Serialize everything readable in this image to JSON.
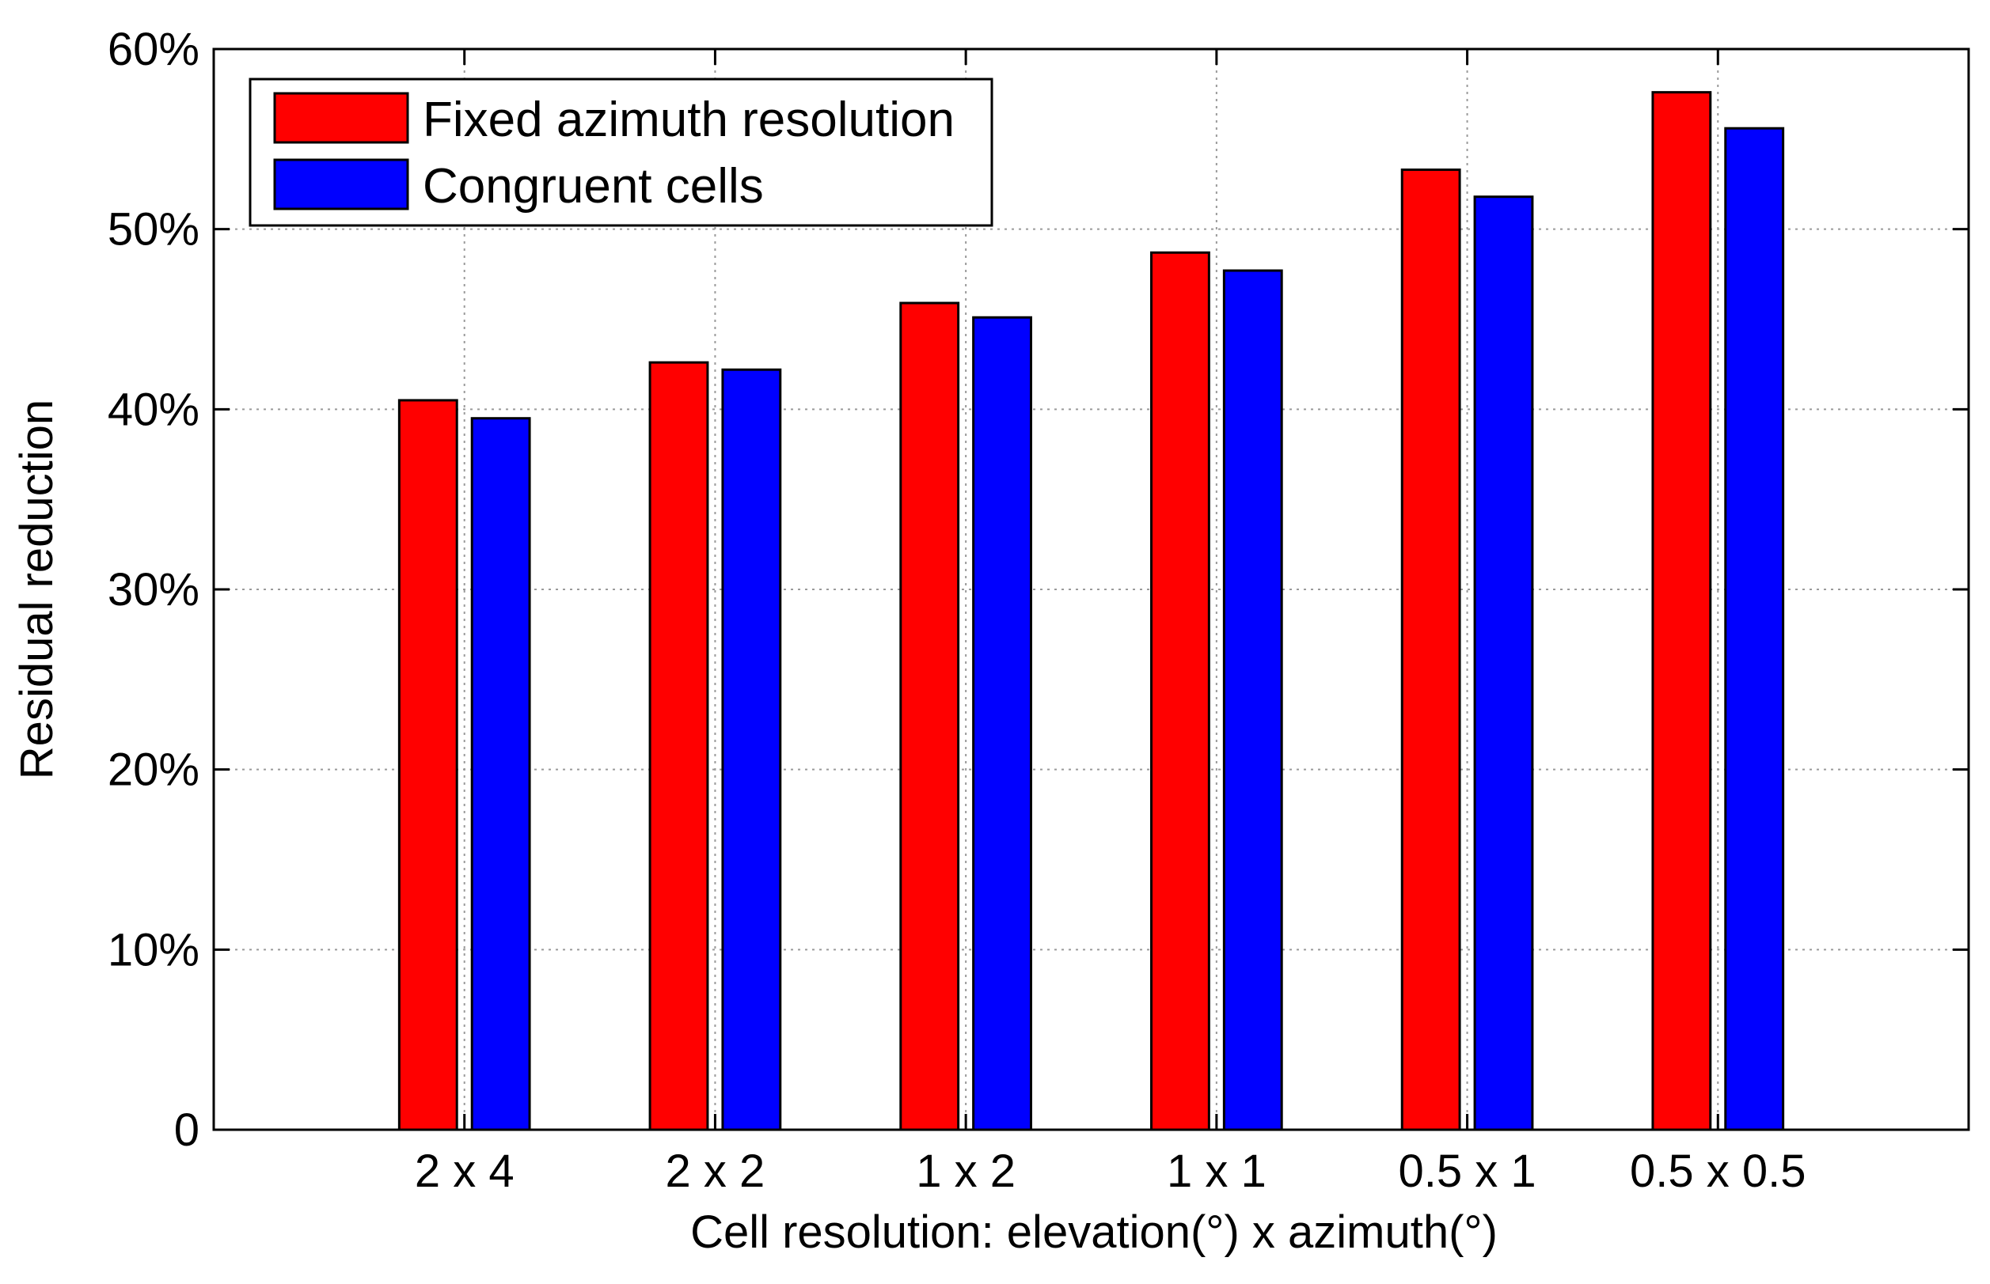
{
  "chart_data": {
    "type": "bar",
    "title": "",
    "xlabel": "Cell resolution: elevation(°) x azimuth(°)",
    "ylabel": "Residual reduction",
    "categories": [
      "2 x 4",
      "2 x 2",
      "1 x 2",
      "1 x 1",
      "0.5 x 1",
      "0.5 x 0.5"
    ],
    "series": [
      {
        "name": "Fixed azimuth resolution",
        "color": "#ff0000",
        "values": [
          40.5,
          42.6,
          45.9,
          48.7,
          53.3,
          57.6
        ]
      },
      {
        "name": "Congruent cells",
        "color": "#0000ff",
        "values": [
          39.5,
          42.2,
          45.1,
          47.7,
          51.8,
          55.6
        ]
      }
    ],
    "ylim": [
      0,
      60
    ],
    "yticks": [
      0,
      10,
      20,
      30,
      40,
      50,
      60
    ],
    "ytick_labels": [
      "0",
      "10%",
      "20%",
      "30%",
      "40%",
      "50%",
      "60%"
    ],
    "xlim": [
      0,
      7
    ],
    "grid": true,
    "legend_position": "top-left"
  }
}
